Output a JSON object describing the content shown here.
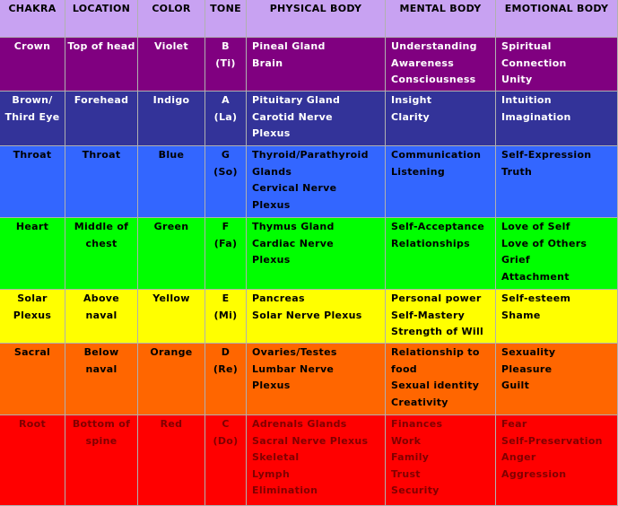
{
  "table": {
    "header": [
      "CHAKRA",
      "LOCATION",
      "COLOR",
      "TONE",
      "PHYSICAL BODY",
      "MENTAL BODY",
      "EMOTIONAL BODY"
    ],
    "rows": [
      [
        [
          "Crown"
        ],
        [
          "Top of head"
        ],
        [
          "Violet"
        ],
        [
          "B",
          "(Ti)"
        ],
        [
          "Pineal Gland",
          "Brain"
        ],
        [
          "Understanding",
          "Awareness",
          "Consciousness"
        ],
        [
          "Spiritual",
          "Connection",
          "Unity"
        ]
      ],
      [
        [
          "Brown/",
          "Third Eye"
        ],
        [
          "Forehead"
        ],
        [
          "Indigo"
        ],
        [
          "A",
          "(La)"
        ],
        [
          "Pituitary Gland",
          "Carotid Nerve",
          "Plexus"
        ],
        [
          "Insight",
          "Clarity"
        ],
        [
          "Intuition",
          "Imagination"
        ]
      ],
      [
        [
          "Throat"
        ],
        [
          "Throat"
        ],
        [
          "Blue"
        ],
        [
          "G",
          "(So)"
        ],
        [
          "Thyroid/Parathyroid",
          "Glands",
          "Cervical Nerve",
          "Plexus"
        ],
        [
          "Communication",
          "Listening"
        ],
        [
          "Self-Expression",
          "Truth"
        ]
      ],
      [
        [
          "Heart"
        ],
        [
          "Middle of",
          "chest"
        ],
        [
          "Green"
        ],
        [
          "F",
          "(Fa)"
        ],
        [
          "Thymus Gland",
          "Cardiac Nerve",
          "Plexus"
        ],
        [
          "Self-Acceptance",
          "Relationships"
        ],
        [
          "Love of Self",
          "Love of Others",
          "Grief",
          "Attachment"
        ]
      ],
      [
        [
          "Solar",
          "Plexus"
        ],
        [
          "Above naval"
        ],
        [
          "Yellow"
        ],
        [
          "E",
          "(Mi)"
        ],
        [
          "Pancreas",
          "Solar Nerve Plexus"
        ],
        [
          "Personal power",
          "Self-Mastery",
          "Strength of Will"
        ],
        [
          "Self-esteem",
          "Shame"
        ]
      ],
      [
        [
          "Sacral"
        ],
        [
          "Below naval"
        ],
        [
          "Orange"
        ],
        [
          "D",
          "(Re)"
        ],
        [
          "Ovaries/Testes",
          "Lumbar Nerve",
          "Plexus"
        ],
        [
          "Relationship to",
          "food",
          "Sexual identity",
          "Creativity"
        ],
        [
          "Sexuality",
          "Pleasure",
          "Guilt"
        ]
      ],
      [
        [
          "Root"
        ],
        [
          "Bottom of",
          "spine"
        ],
        [
          "Red"
        ],
        [
          "C",
          "(Do)"
        ],
        [
          "Adrenals Glands",
          "Sacral Nerve Plexus",
          "Skeletal",
          "Lymph",
          "Elimination"
        ],
        [
          "Finances",
          "Work",
          "Family",
          "Trust",
          "Security"
        ],
        [
          "Fear",
          "Self-Preservation",
          "Anger",
          "Aggression"
        ]
      ]
    ]
  }
}
